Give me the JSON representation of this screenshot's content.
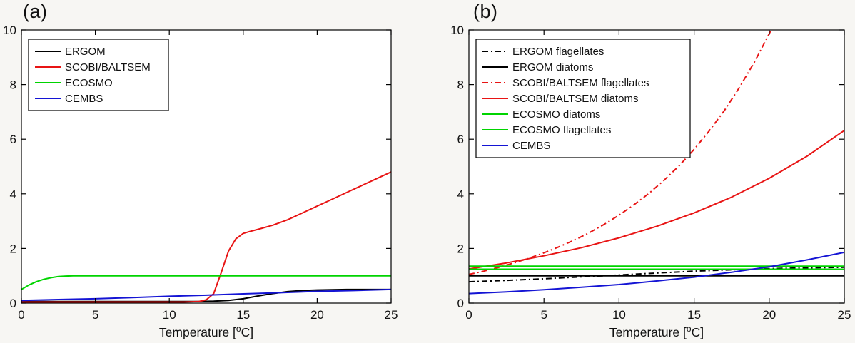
{
  "figure": {
    "background": "#f7f6f3",
    "plot_background": "#ffffff",
    "axis_color": "#000000"
  },
  "chart_data": [
    {
      "type": "line",
      "label": "(a)",
      "title": "",
      "xlabel": "Temperature [°C]",
      "xlabel_parts": {
        "pre": "Temperature [",
        "sup": "o",
        "post": "C]"
      },
      "ylabel": "",
      "xlim": [
        0,
        25
      ],
      "ylim": [
        0,
        10
      ],
      "xticks": [
        0,
        5,
        10,
        15,
        20,
        25
      ],
      "yticks": [
        0,
        2,
        4,
        6,
        8,
        10
      ],
      "grid": false,
      "legend_position": "top-left",
      "series": [
        {
          "name": "ERGOM",
          "color": "#000000",
          "dash": "solid",
          "width": 2,
          "x": [
            0,
            2,
            4,
            6,
            8,
            10,
            12,
            13,
            14,
            15,
            16,
            17,
            18,
            19,
            20,
            21,
            22,
            23,
            24,
            25
          ],
          "y": [
            0.06,
            0.06,
            0.06,
            0.06,
            0.06,
            0.06,
            0.06,
            0.07,
            0.1,
            0.16,
            0.26,
            0.35,
            0.42,
            0.46,
            0.48,
            0.49,
            0.5,
            0.5,
            0.5,
            0.5
          ]
        },
        {
          "name": "SCOBI/BALTSEM",
          "color": "#e81414",
          "dash": "solid",
          "width": 2,
          "x": [
            0,
            2,
            4,
            6,
            8,
            10,
            11,
            12,
            12.5,
            13,
            13.5,
            14,
            14.5,
            15,
            15.5,
            16,
            17,
            18,
            19,
            20,
            21,
            22,
            23,
            24,
            25
          ],
          "y": [
            0.04,
            0.04,
            0.04,
            0.04,
            0.04,
            0.04,
            0.04,
            0.06,
            0.12,
            0.35,
            1.1,
            1.9,
            2.35,
            2.55,
            2.63,
            2.7,
            2.85,
            3.05,
            3.3,
            3.55,
            3.8,
            4.05,
            4.3,
            4.55,
            4.8
          ]
        },
        {
          "name": "ECOSMO",
          "color": "#00d400",
          "dash": "solid",
          "width": 2,
          "x": [
            0,
            0.5,
            1,
            1.5,
            2,
            2.5,
            3,
            3.5,
            4,
            5,
            10,
            15,
            20,
            25
          ],
          "y": [
            0.5,
            0.66,
            0.78,
            0.87,
            0.93,
            0.97,
            0.99,
            1.0,
            1.0,
            1.0,
            1.0,
            1.0,
            1.0,
            1.0
          ]
        },
        {
          "name": "CEMBS",
          "color": "#1414d4",
          "dash": "solid",
          "width": 2,
          "x": [
            0,
            2.5,
            5,
            7.5,
            10,
            12.5,
            15,
            17.5,
            20,
            22.5,
            25
          ],
          "y": [
            0.1,
            0.13,
            0.16,
            0.2,
            0.25,
            0.29,
            0.34,
            0.38,
            0.43,
            0.46,
            0.5
          ]
        }
      ]
    },
    {
      "type": "line",
      "label": "(b)",
      "title": "",
      "xlabel": "Temperature [°C]",
      "xlabel_parts": {
        "pre": "Temperature [",
        "sup": "o",
        "post": "C]"
      },
      "ylabel": "",
      "xlim": [
        0,
        25
      ],
      "ylim": [
        0,
        10
      ],
      "xticks": [
        0,
        5,
        10,
        15,
        20,
        25
      ],
      "yticks": [
        0,
        2,
        4,
        6,
        8,
        10
      ],
      "grid": false,
      "legend_position": "top-left",
      "series": [
        {
          "name": "ERGOM flagellates",
          "color": "#000000",
          "dash": "dashdot",
          "width": 2,
          "x": [
            0,
            2.5,
            5,
            7.5,
            10,
            12.5,
            15,
            17.5,
            20,
            22.5,
            25
          ],
          "y": [
            0.78,
            0.83,
            0.89,
            0.96,
            1.03,
            1.1,
            1.17,
            1.22,
            1.26,
            1.29,
            1.31
          ]
        },
        {
          "name": "ERGOM diatoms",
          "color": "#000000",
          "dash": "solid",
          "width": 2,
          "x": [
            0,
            25
          ],
          "y": [
            1.0,
            1.0
          ]
        },
        {
          "name": "SCOBI/BALTSEM flagellates",
          "color": "#e81414",
          "dash": "dashdot",
          "width": 2,
          "x": [
            0,
            1,
            2,
            3,
            4,
            5,
            6,
            7,
            8,
            9,
            10,
            11,
            12,
            13,
            14,
            15,
            16,
            17,
            18,
            19,
            20,
            20.5,
            21
          ],
          "y": [
            1.05,
            1.17,
            1.31,
            1.47,
            1.64,
            1.84,
            2.06,
            2.3,
            2.57,
            2.88,
            3.22,
            3.6,
            4.02,
            4.5,
            5.03,
            5.63,
            6.3,
            7.04,
            7.88,
            8.81,
            9.86,
            10.42,
            11.02
          ]
        },
        {
          "name": "SCOBI/BALTSEM diatoms",
          "color": "#e81414",
          "dash": "solid",
          "width": 2,
          "x": [
            0,
            2.5,
            5,
            7.5,
            10,
            12.5,
            15,
            17.5,
            20,
            22.5,
            25
          ],
          "y": [
            1.25,
            1.47,
            1.73,
            2.03,
            2.39,
            2.81,
            3.3,
            3.88,
            4.57,
            5.37,
            6.32
          ]
        },
        {
          "name": "ECOSMO diatoms",
          "color": "#00d400",
          "dash": "solid",
          "width": 2,
          "x": [
            0,
            25
          ],
          "y": [
            1.35,
            1.35
          ]
        },
        {
          "name": "ECOSMO flagellates",
          "color": "#00d400",
          "dash": "solid",
          "width": 2,
          "x": [
            0,
            25
          ],
          "y": [
            1.24,
            1.24
          ]
        },
        {
          "name": "CEMBS",
          "color": "#1414d4",
          "dash": "solid",
          "width": 2,
          "x": [
            0,
            2.5,
            5,
            7.5,
            10,
            12.5,
            15,
            17.5,
            20,
            22.5,
            25
          ],
          "y": [
            0.35,
            0.41,
            0.49,
            0.58,
            0.68,
            0.81,
            0.95,
            1.13,
            1.33,
            1.58,
            1.86
          ]
        }
      ]
    }
  ]
}
